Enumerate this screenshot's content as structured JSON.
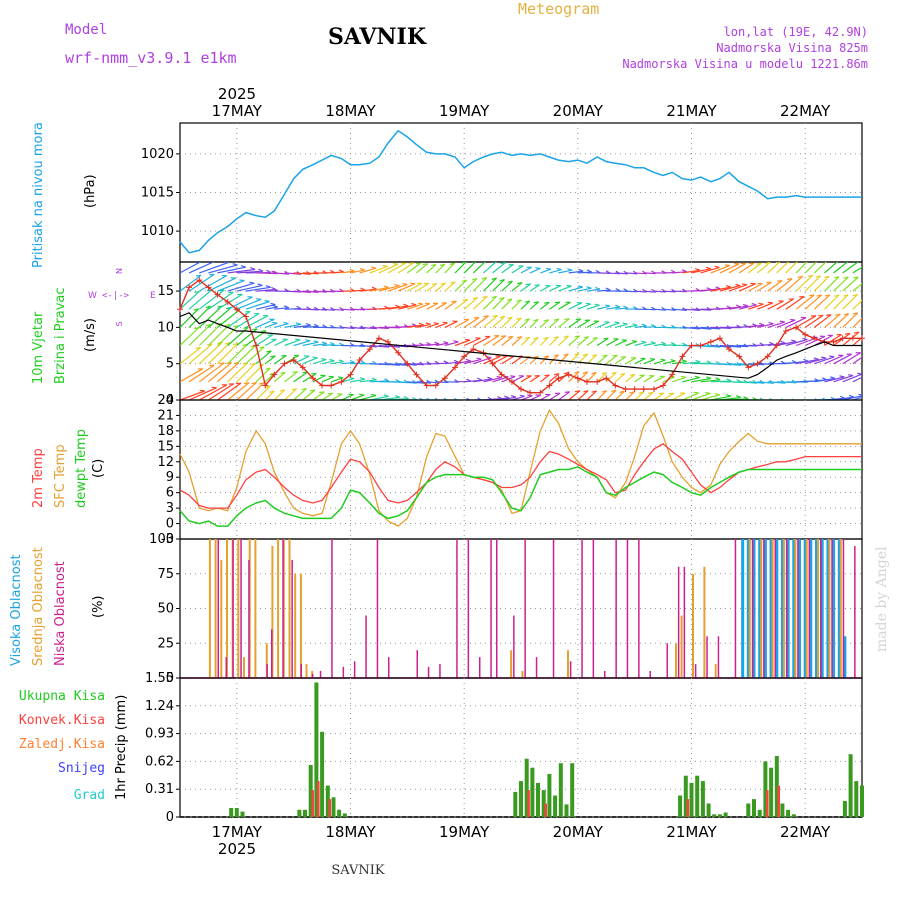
{
  "header": {
    "model_label": "Model",
    "model_name": "wrf-nmm_v3.9.1 e1km",
    "station": "SAVNIK",
    "product": "Meteogram",
    "lonlat": "lon,lat (19E, 42.9N)",
    "altitude": "Nadmorska Visina 825m",
    "model_altitude": "Nadmorska Visina u modelu 1221.86m",
    "year": "2025",
    "watermark": "made by Angel",
    "footer_station": "SAVNIK"
  },
  "colors": {
    "pressure": "#1aa3e6",
    "t2m": "#ff4040",
    "tsfc": "#e6a030",
    "dewpt": "#20cc20",
    "high_cloud": "#1aa3e6",
    "mid_cloud": "#e6a030",
    "low_cloud": "#cc2090",
    "total_precip": "#20cc20",
    "conv_precip": "#ff4040",
    "freezing": "#ff8030",
    "snow": "#4040ff",
    "graupel": "#20cccc",
    "dark_label": "#b040e0"
  },
  "chart_data": [
    {
      "type": "line",
      "name": "pressure",
      "ylabel": "Pritisak na nivou mora",
      "unit": "(hPa)",
      "ylim": [
        1006,
        1024
      ],
      "yticks": [
        1010,
        1015,
        1020
      ],
      "x_days": [
        0,
        0.08,
        0.17,
        0.25,
        0.33,
        0.42,
        0.5,
        0.58,
        0.67,
        0.75,
        0.83,
        0.92,
        1.0,
        1.08,
        1.17,
        1.25,
        1.33,
        1.42,
        1.5,
        1.58,
        1.67,
        1.75,
        1.83,
        1.92,
        2.0,
        2.08,
        2.17,
        2.25,
        2.33,
        2.42,
        2.5,
        2.58,
        2.67,
        2.75,
        2.83,
        2.92,
        3.0,
        3.08,
        3.17,
        3.25,
        3.33,
        3.42,
        3.5,
        3.58,
        3.67,
        3.75,
        3.83,
        3.92,
        4.0,
        4.08,
        4.17,
        4.25,
        4.33,
        4.42,
        4.5,
        4.58,
        4.67,
        4.75,
        4.83,
        4.92,
        5.0,
        5.08,
        5.17,
        5.25,
        5.33,
        5.42,
        5.5,
        5.58,
        5.67,
        5.75,
        5.83,
        5.92,
        6.0
      ],
      "values": [
        1008.6,
        1007.2,
        1007.5,
        1008.8,
        1009.8,
        1010.6,
        1011.6,
        1012.4,
        1012.0,
        1011.8,
        1012.6,
        1014.8,
        1016.8,
        1018.0,
        1018.6,
        1019.2,
        1019.8,
        1019.4,
        1018.6,
        1018.6,
        1018.8,
        1019.6,
        1021.4,
        1023.0,
        1022.2,
        1021.2,
        1020.2,
        1020.0,
        1020.0,
        1019.6,
        1018.2,
        1019.0,
        1019.6,
        1020.0,
        1020.2,
        1019.8,
        1020.0,
        1019.8,
        1020.0,
        1019.6,
        1019.2,
        1019.0,
        1019.2,
        1018.8,
        1019.6,
        1019.0,
        1018.8,
        1018.6,
        1018.2,
        1018.2,
        1017.6,
        1017.2,
        1017.6,
        1016.8,
        1016.6,
        1017.0,
        1016.4,
        1016.8,
        1017.6,
        1016.4,
        1015.8,
        1015.2,
        1014.2,
        1014.4,
        1014.4,
        1014.6,
        1014.4,
        1014.4,
        1014.4,
        1014.4,
        1014.4,
        1014.4,
        1014.4
      ]
    },
    {
      "type": "line",
      "name": "wind",
      "ylabel_1": "10m Vjetar",
      "ylabel_2": "Brzina i Pravac",
      "unit": "(m/s)",
      "compass": {
        "n": "N",
        "w": "W",
        "e": "E",
        "s": "S",
        "dash": "<-|->"
      },
      "ylim": [
        0,
        19
      ],
      "yticks": [
        0,
        5,
        10,
        15
      ],
      "x_days": [
        0,
        0.08,
        0.17,
        0.25,
        0.33,
        0.42,
        0.5,
        0.58,
        0.67,
        0.75,
        0.83,
        0.92,
        1.0,
        1.08,
        1.17,
        1.25,
        1.33,
        1.42,
        1.5,
        1.58,
        1.67,
        1.75,
        1.83,
        1.92,
        2.0,
        2.08,
        2.17,
        2.25,
        2.33,
        2.42,
        2.5,
        2.58,
        2.67,
        2.75,
        2.83,
        2.92,
        3.0,
        3.08,
        3.17,
        3.25,
        3.33,
        3.42,
        3.5,
        3.58,
        3.67,
        3.75,
        3.83,
        3.92,
        4.0,
        4.08,
        4.17,
        4.25,
        4.33,
        4.42,
        4.5,
        4.58,
        4.67,
        4.75,
        4.83,
        4.92,
        5.0,
        5.08,
        5.17,
        5.25,
        5.33,
        5.42,
        5.5,
        5.58,
        5.67,
        5.75,
        5.83,
        5.92,
        6.0
      ],
      "speed": [
        12.5,
        15.5,
        16.5,
        15.5,
        14.5,
        13.5,
        12.5,
        11.5,
        7.5,
        2.0,
        3.5,
        5.0,
        5.5,
        4.5,
        3.0,
        2.0,
        2.0,
        2.5,
        3.5,
        5.5,
        7.0,
        8.5,
        8.0,
        6.5,
        5.0,
        3.5,
        2.0,
        2.0,
        3.0,
        4.5,
        6.0,
        7.0,
        6.5,
        5.0,
        3.5,
        2.5,
        1.5,
        1.0,
        1.0,
        2.0,
        3.0,
        3.5,
        3.0,
        2.5,
        2.5,
        3.0,
        2.0,
        1.5,
        1.5,
        1.5,
        1.5,
        2.0,
        3.5,
        6.0,
        7.5,
        7.5,
        8.0,
        8.5,
        7.0,
        6.0,
        4.5,
        5.0,
        6.0,
        7.5,
        9.5,
        10.0,
        9.0,
        8.5,
        8.0,
        8.0,
        8.5,
        8.5,
        8.5
      ],
      "gust": [
        11.5,
        12.0,
        10.5,
        11.0,
        10.5,
        10.0,
        9.5,
        9.5,
        null,
        null,
        null,
        null,
        null,
        null,
        null,
        null,
        null,
        null,
        null,
        null,
        null,
        null,
        null,
        null,
        null,
        null,
        null,
        null,
        null,
        null,
        null,
        null,
        null,
        null,
        null,
        null,
        null,
        null,
        null,
        null,
        null,
        null,
        null,
        null,
        null,
        null,
        null,
        null,
        null,
        null,
        null,
        null,
        null,
        null,
        null,
        null,
        null,
        null,
        null,
        null,
        3.0,
        3.5,
        4.5,
        5.5,
        6.0,
        6.5,
        7.0,
        7.5,
        8.0,
        7.5,
        7.5,
        7.5,
        7.5
      ]
    },
    {
      "type": "line",
      "name": "temperature",
      "ylabel_t2m": "2m Temp",
      "ylabel_tsfc": "SFC Temp",
      "ylabel_dew": "dewpt Temp",
      "unit": "(C)",
      "ylim": [
        -3,
        24
      ],
      "yticks": [
        -3,
        0,
        3,
        6,
        9,
        12,
        15,
        18,
        21,
        24
      ],
      "x_days": [
        0,
        0.08,
        0.17,
        0.25,
        0.33,
        0.42,
        0.5,
        0.58,
        0.67,
        0.75,
        0.83,
        0.92,
        1.0,
        1.08,
        1.17,
        1.25,
        1.33,
        1.42,
        1.5,
        1.58,
        1.67,
        1.75,
        1.83,
        1.92,
        2.0,
        2.08,
        2.17,
        2.25,
        2.33,
        2.42,
        2.5,
        2.58,
        2.67,
        2.75,
        2.83,
        2.92,
        3.0,
        3.08,
        3.17,
        3.25,
        3.33,
        3.42,
        3.5,
        3.58,
        3.67,
        3.75,
        3.83,
        3.92,
        4.0,
        4.08,
        4.17,
        4.25,
        4.33,
        4.42,
        4.5,
        4.58,
        4.67,
        4.75,
        4.83,
        4.92,
        5.0,
        5.08,
        5.17,
        5.25,
        5.33,
        5.42,
        5.5,
        5.58,
        5.67,
        5.75,
        5.83,
        5.92,
        6.0
      ],
      "t2m": [
        6.5,
        5.5,
        3.5,
        3.0,
        3.0,
        3.0,
        5.5,
        8.5,
        10.0,
        10.5,
        9.0,
        7.0,
        5.5,
        4.5,
        4.0,
        4.5,
        7.0,
        10.0,
        12.5,
        12.0,
        10.0,
        7.0,
        4.5,
        4.0,
        4.5,
        6.0,
        8.0,
        10.5,
        12.0,
        11.0,
        9.5,
        9.0,
        8.5,
        8.0,
        7.0,
        7.0,
        7.5,
        9.0,
        12.0,
        14.0,
        13.5,
        12.5,
        11.5,
        10.5,
        9.5,
        8.5,
        6.0,
        6.5,
        9.5,
        12.0,
        14.5,
        15.5,
        14.0,
        12.5,
        10.0,
        7.5,
        6.0,
        7.0,
        8.5,
        10.0,
        10.5,
        11.0,
        11.5,
        12.0,
        12.0,
        12.5,
        13.0,
        13.0,
        13.0,
        13.0,
        13.0,
        13.0,
        13.0
      ],
      "tsfc": [
        13.5,
        10.0,
        3.0,
        2.5,
        3.0,
        2.5,
        7.0,
        14.0,
        18.0,
        15.5,
        10.0,
        6.0,
        3.0,
        2.0,
        1.5,
        2.0,
        8.0,
        15.5,
        18.0,
        15.5,
        9.5,
        2.5,
        0.5,
        -0.5,
        1.0,
        5.0,
        13.0,
        17.5,
        17.0,
        13.0,
        9.5,
        9.0,
        8.5,
        8.0,
        6.5,
        2.0,
        2.5,
        10.0,
        18.0,
        22.0,
        19.5,
        14.5,
        12.0,
        10.5,
        9.0,
        6.0,
        5.0,
        8.0,
        13.0,
        19.0,
        21.5,
        17.0,
        12.0,
        9.0,
        7.0,
        6.0,
        7.5,
        11.5,
        14.0,
        16.0,
        17.5,
        16.0,
        15.5,
        15.5,
        15.5,
        15.5,
        15.5,
        15.5,
        15.5,
        15.5,
        15.5,
        15.5,
        15.5
      ],
      "dewpt": [
        2.5,
        0.5,
        0.0,
        0.5,
        -0.5,
        -0.5,
        1.5,
        3.0,
        4.0,
        4.5,
        3.0,
        2.0,
        1.5,
        1.0,
        1.0,
        1.0,
        1.0,
        3.0,
        6.5,
        6.0,
        4.0,
        2.0,
        1.0,
        1.5,
        2.5,
        5.0,
        8.0,
        9.0,
        9.5,
        9.5,
        9.5,
        9.0,
        9.0,
        8.5,
        6.0,
        3.0,
        2.5,
        5.0,
        9.5,
        10.0,
        10.5,
        10.5,
        11.0,
        10.0,
        9.0,
        6.0,
        5.5,
        7.0,
        8.0,
        9.0,
        10.0,
        9.5,
        8.0,
        7.0,
        6.0,
        5.5,
        7.0,
        8.0,
        9.0,
        10.0,
        10.5,
        10.5,
        10.5,
        10.5,
        10.5,
        10.5,
        10.5,
        10.5,
        10.5,
        10.5,
        10.5,
        10.5,
        10.5
      ]
    },
    {
      "type": "bar",
      "name": "cloud",
      "ylabel_high": "Visoka Oblacnost",
      "ylabel_mid": "Srednja Oblacnost",
      "ylabel_low": "Niska Oblacnost",
      "unit": "(%)",
      "ylim": [
        0,
        100
      ],
      "yticks": [
        0,
        25,
        50,
        75,
        100
      ],
      "mid_x": [
        0.25,
        0.3,
        0.35,
        0.4,
        0.45,
        0.5,
        0.55,
        0.6,
        0.65,
        0.75,
        0.8,
        0.85,
        0.9,
        0.95,
        1.0,
        1.05,
        1.1,
        1.15,
        2.9,
        3.0,
        3.4,
        4.35,
        4.4,
        4.5,
        4.6,
        4.7,
        5.0,
        5.1,
        5.2,
        5.3,
        5.4,
        5.5,
        5.6,
        5.7,
        5.8
      ],
      "mid_values": [
        100,
        100,
        85,
        100,
        100,
        100,
        15,
        100,
        100,
        25,
        95,
        100,
        100,
        100,
        75,
        75,
        10,
        5,
        20,
        5,
        20,
        25,
        45,
        75,
        80,
        10,
        100,
        100,
        100,
        100,
        100,
        100,
        100,
        100,
        100
      ],
      "low_x": [
        0.35,
        0.42,
        0.48,
        0.55,
        0.62,
        0.78,
        0.82,
        0.92,
        1.0,
        1.08,
        1.18,
        1.25,
        1.35,
        1.45,
        1.55,
        1.65,
        1.75,
        1.85,
        2.1,
        2.2,
        2.3,
        2.45,
        2.55,
        2.65,
        2.75,
        2.8,
        2.95,
        3.05,
        3.15,
        3.3,
        3.45,
        3.55,
        3.65,
        3.75,
        3.85,
        3.95,
        4.05,
        4.15,
        4.3,
        4.4,
        4.45,
        4.55,
        4.65,
        4.75,
        4.9,
        5.05,
        5.15,
        5.25,
        5.35,
        5.45,
        5.55,
        5.65,
        5.75,
        5.85,
        5.95
      ],
      "low_values": [
        100,
        15,
        100,
        100,
        85,
        10,
        35,
        100,
        85,
        10,
        3,
        5,
        100,
        8,
        12,
        45,
        100,
        15,
        20,
        8,
        10,
        100,
        100,
        15,
        100,
        100,
        45,
        100,
        15,
        100,
        12,
        100,
        100,
        5,
        100,
        100,
        100,
        5,
        25,
        80,
        80,
        10,
        30,
        30,
        100,
        100,
        100,
        100,
        100,
        100,
        100,
        100,
        100,
        100,
        95
      ],
      "high_x": [
        4.95,
        5.0,
        5.05,
        5.1,
        5.15,
        5.2,
        5.25,
        5.3,
        5.35,
        5.4,
        5.45,
        5.5,
        5.55,
        5.6,
        5.65,
        5.7,
        5.75,
        5.8,
        5.85
      ],
      "high_values": [
        100,
        100,
        100,
        100,
        100,
        100,
        100,
        100,
        100,
        100,
        100,
        100,
        100,
        100,
        100,
        100,
        100,
        100,
        30
      ]
    },
    {
      "type": "bar",
      "name": "precip",
      "ylabel": "1hr Precip (mm)",
      "legend": [
        "Ukupna Kisa",
        "Konvek.Kisa",
        "Zaledj.Kisa",
        "Snijeg",
        "Grad"
      ],
      "ylim": [
        0,
        1.55
      ],
      "yticks": [
        0,
        0.31,
        0.62,
        0.93,
        1.24,
        1.55
      ],
      "total_x": [
        0.45,
        0.5,
        0.55,
        1.05,
        1.1,
        1.15,
        1.2,
        1.25,
        1.3,
        1.35,
        1.4,
        1.45,
        2.95,
        3.0,
        3.05,
        3.1,
        3.15,
        3.2,
        3.25,
        3.3,
        3.35,
        3.4,
        3.45,
        4.4,
        4.45,
        4.5,
        4.55,
        4.6,
        4.65,
        4.7,
        4.75,
        4.8,
        5.0,
        5.05,
        5.1,
        5.15,
        5.2,
        5.25,
        5.3,
        5.35,
        5.4,
        5.85,
        5.9,
        5.95,
        6.0
      ],
      "total_values": [
        0.1,
        0.1,
        0.06,
        0.08,
        0.08,
        0.58,
        1.5,
        0.95,
        0.35,
        0.22,
        0.08,
        0.04,
        0.28,
        0.4,
        0.65,
        0.55,
        0.38,
        0.3,
        0.48,
        0.24,
        0.6,
        0.14,
        0.6,
        0.24,
        0.46,
        0.38,
        0.46,
        0.4,
        0.15,
        0.03,
        0.03,
        0.05,
        0.15,
        0.2,
        0.08,
        0.62,
        0.55,
        0.68,
        0.15,
        0.08,
        0.03,
        0.18,
        0.7,
        0.4,
        0.35
      ],
      "conv_x": [
        1.15,
        1.2,
        1.3,
        3.05,
        3.2,
        4.45,
        5.15,
        5.25
      ],
      "conv_values": [
        0.3,
        0.4,
        0.2,
        0.3,
        0.15,
        0.2,
        0.3,
        0.35
      ]
    }
  ],
  "time_axis": {
    "top_labels": [
      "17MAY",
      "18MAY",
      "19MAY",
      "20MAY",
      "21MAY",
      "22MAY"
    ],
    "bottom_labels": [
      "17MAY",
      "18MAY",
      "19MAY",
      "20MAY",
      "21MAY",
      "22MAY"
    ],
    "day_positions": [
      0.5,
      1.5,
      2.5,
      3.5,
      4.5,
      5.5
    ],
    "start_label": "2025"
  }
}
